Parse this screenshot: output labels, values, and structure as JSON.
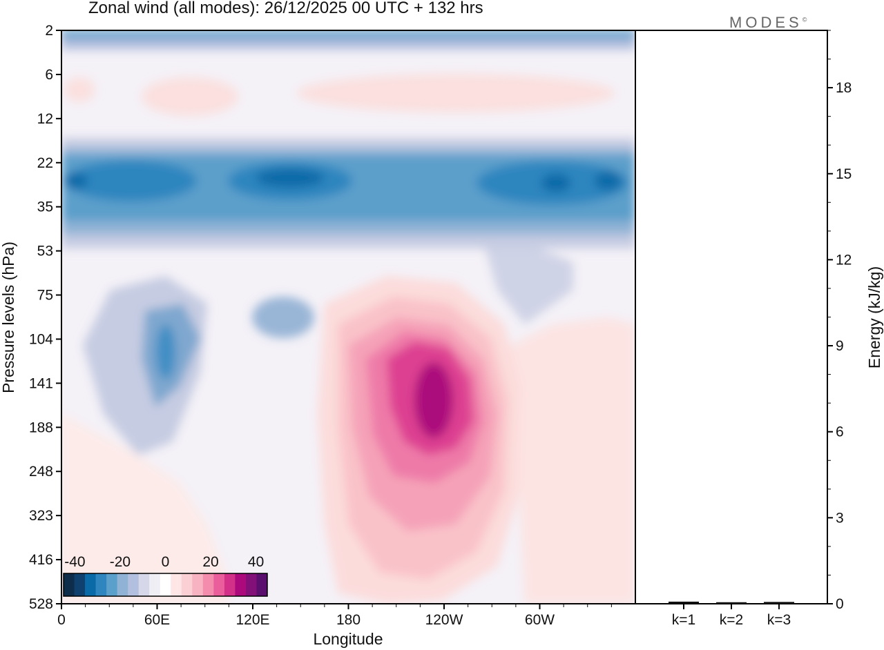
{
  "header": {
    "title": "Zonal wind (all modes):  26/12/2025  00 UTC  + 132 hrs",
    "logo": "MODES",
    "logo_mark": "©"
  },
  "chart_data": [
    {
      "type": "heatmap",
      "title": "Zonal wind (all modes):  26/12/2025  00 UTC  + 132 hrs",
      "xlabel": "Longitude",
      "ylabel": "Pressure levels (hPa)",
      "x_ticks": [
        {
          "lon": 0,
          "label": "0"
        },
        {
          "lon": 60,
          "label": "60E"
        },
        {
          "lon": 120,
          "label": "120E"
        },
        {
          "lon": 180,
          "label": "180"
        },
        {
          "lon": 240,
          "label": "120W"
        },
        {
          "lon": 300,
          "label": "60W"
        }
      ],
      "xlim": [
        0,
        360
      ],
      "y_levels": [
        2,
        6,
        12,
        22,
        35,
        53,
        75,
        104,
        141,
        188,
        248,
        323,
        416,
        528
      ],
      "colorbar": {
        "tick_labels": [
          "-40",
          "-20",
          "0",
          "20",
          "40"
        ],
        "tick_values": [
          -40,
          -20,
          0,
          20,
          40
        ],
        "range": [
          -45,
          45
        ],
        "colors": [
          "#0d2d4a",
          "#10406e",
          "#0a6aa8",
          "#2f86bf",
          "#5b9fcb",
          "#8fb2d5",
          "#b3bfde",
          "#d6d8ea",
          "#f0eef5",
          "#ffffff",
          "#fde6e5",
          "#fad0d4",
          "#f7b3c2",
          "#f48cad",
          "#ea5f9b",
          "#d3308a",
          "#ac0a7c",
          "#830f78",
          "#5a0e6e"
        ]
      },
      "features": [
        {
          "name": "stratospheric easterly band",
          "lon_range": [
            0,
            360
          ],
          "level_center": 28,
          "peak_value": -25
        },
        {
          "name": "upper easterlies 2 hPa",
          "lon_range": [
            0,
            360
          ],
          "level_center": 2,
          "peak_value": -15
        },
        {
          "name": "easterly tongue 60E",
          "lon_center": 65,
          "level_center": 115,
          "peak_value": -20
        },
        {
          "name": "westerly jet",
          "lon_center": 238,
          "level_center": 141,
          "peak_value": 38
        },
        {
          "name": "weak westerly 6-12 hPa",
          "lon_range": [
            150,
            360
          ],
          "level_center": 8,
          "peak_value": 5
        }
      ]
    },
    {
      "type": "bar",
      "ylabel": "Energy (kJ/kg)",
      "ylim": [
        0,
        20
      ],
      "y_ticks": [
        0,
        3,
        6,
        9,
        12,
        15,
        18
      ],
      "categories": [
        "k=1",
        "k=2",
        "k=3"
      ],
      "values": [
        0.05,
        0.03,
        0.04
      ]
    }
  ]
}
